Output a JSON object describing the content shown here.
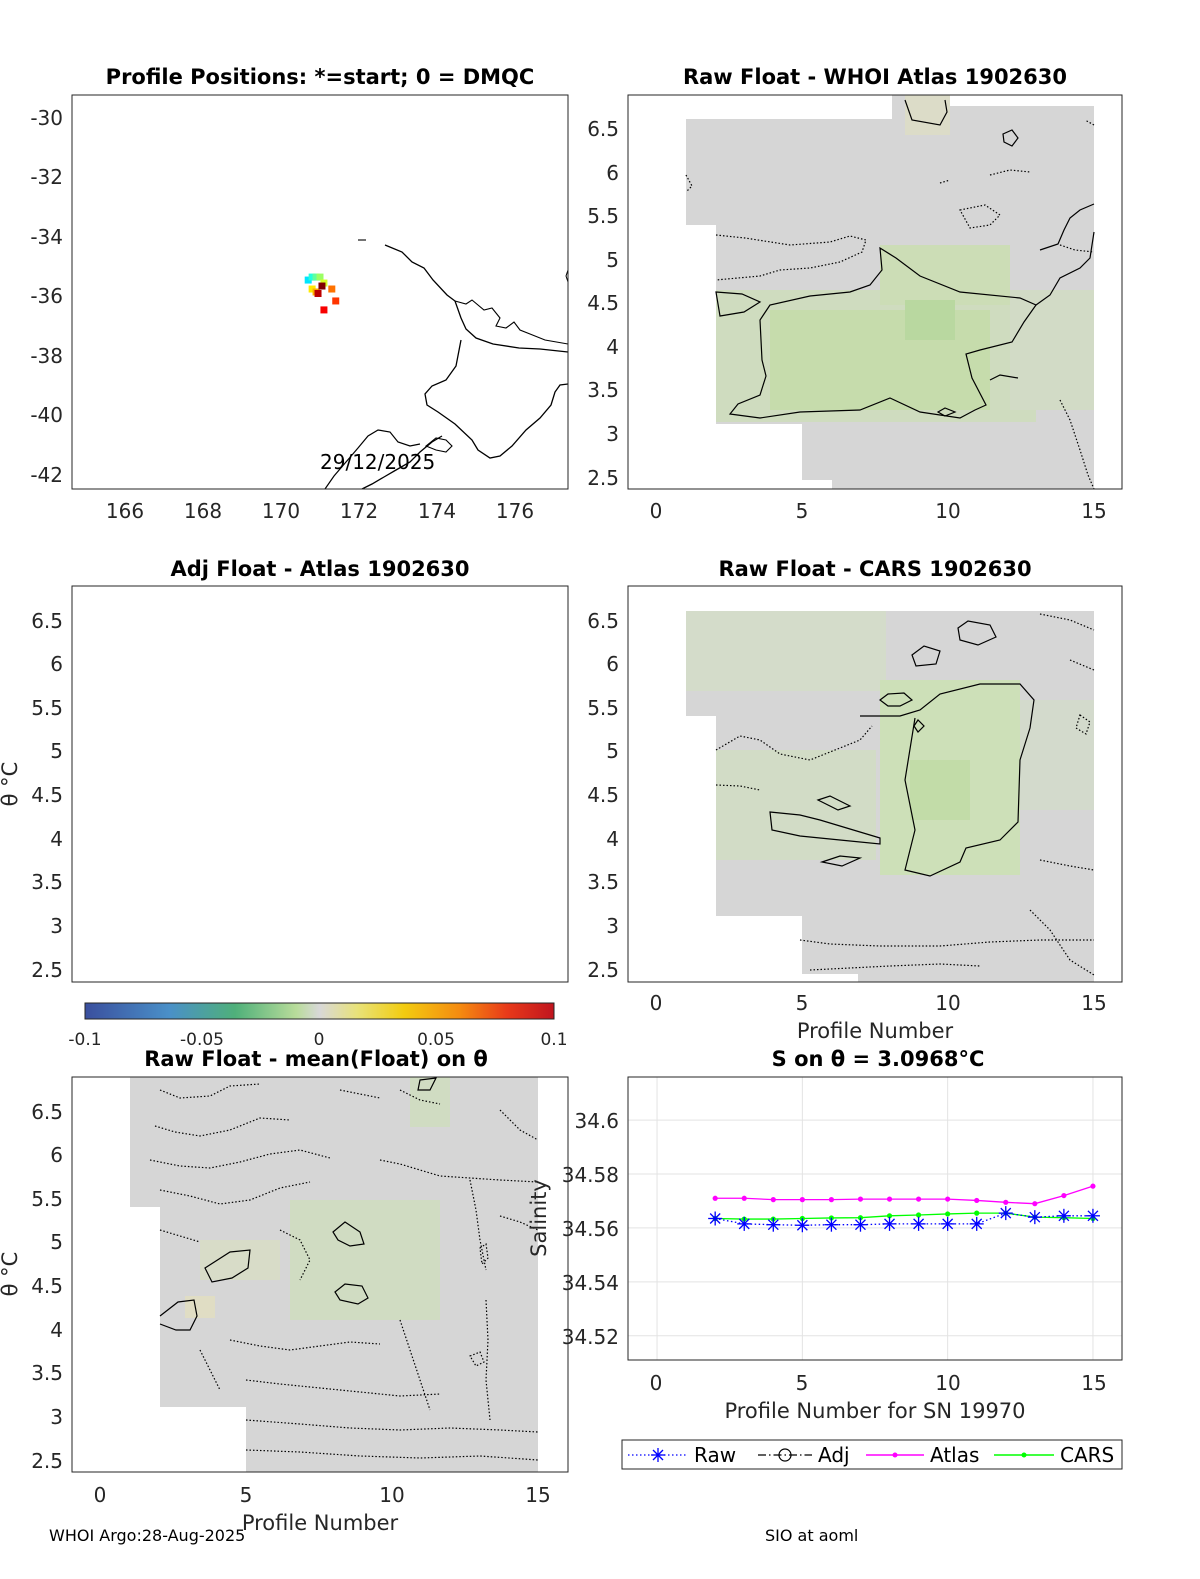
{
  "panels": {
    "map": {
      "title": "Profile Positions: *=start; 0 = DMQC",
      "date_label": "29/12/2025",
      "xticks": [
        "166",
        "168",
        "170",
        "172",
        "174",
        "176"
      ],
      "yticks": [
        "-30",
        "-32",
        "-34",
        "-36",
        "-38",
        "-40",
        "-42"
      ]
    },
    "whoi": {
      "title": "Raw Float - WHOI Atlas  1902630",
      "xticks": [
        "0",
        "5",
        "10",
        "15"
      ],
      "yticks": [
        "6.5",
        "6",
        "5.5",
        "5",
        "4.5",
        "4",
        "3.5",
        "3",
        "2.5"
      ]
    },
    "adj": {
      "title": "Adj Float - Atlas  1902630",
      "ylabel": "θ °C",
      "yticks": [
        "6.5",
        "6",
        "5.5",
        "5",
        "4.5",
        "4",
        "3.5",
        "3",
        "2.5"
      ]
    },
    "cars": {
      "title": "Raw Float - CARS  1902630",
      "xlabel": "Profile Number",
      "xticks": [
        "0",
        "5",
        "10",
        "15"
      ],
      "yticks": [
        "6.5",
        "6",
        "5.5",
        "5",
        "4.5",
        "4",
        "3.5",
        "3",
        "2.5"
      ]
    },
    "colorbar": {
      "ticks": [
        "-0.1",
        "-0.05",
        "0",
        "0.05",
        "0.1"
      ]
    },
    "mean": {
      "title": "Raw Float - mean(Float) on θ",
      "xlabel": "Profile Number",
      "ylabel": "θ °C",
      "xticks": [
        "0",
        "5",
        "10",
        "15"
      ],
      "yticks": [
        "6.5",
        "6",
        "5.5",
        "5",
        "4.5",
        "4",
        "3.5",
        "3",
        "2.5"
      ]
    },
    "salinity": {
      "title": "S on θ = 3.0968°C",
      "xlabel": "Profile Number for SN 19970",
      "ylabel": "Salinity",
      "xticks": [
        "0",
        "5",
        "10",
        "15"
      ],
      "yticks": [
        "34.6",
        "34.58",
        "34.56",
        "34.54",
        "34.52"
      ],
      "legend": [
        "Raw",
        "Adj",
        "Atlas",
        "CARS"
      ]
    }
  },
  "footer": {
    "left": "WHOI Argo:28-Aug-2025",
    "right": "SIO at aoml"
  },
  "colors": {
    "raw": "#0000ff",
    "adj": "#000000",
    "atlas": "#ff00ff",
    "cars": "#00ff00",
    "field_grey": "#d6d6d6",
    "field_green": "#c8e0b0"
  },
  "chart_data": [
    {
      "type": "scatter",
      "title": "Profile Positions: *=start; 0 = DMQC",
      "xlim": [
        164.7,
        177.3
      ],
      "ylim": [
        -42.5,
        -29.3
      ],
      "annotation": "29/12/2025",
      "points": [
        {
          "lon": 170.7,
          "lat": -35.5
        },
        {
          "lon": 170.8,
          "lat": -35.4
        },
        {
          "lon": 170.9,
          "lat": -35.4
        },
        {
          "lon": 171.0,
          "lat": -35.4
        },
        {
          "lon": 171.1,
          "lat": -35.6
        },
        {
          "lon": 170.8,
          "lat": -35.8
        },
        {
          "lon": 170.9,
          "lat": -35.9
        },
        {
          "lon": 171.3,
          "lat": -35.8
        },
        {
          "lon": 171.4,
          "lat": -36.2
        },
        {
          "lon": 171.1,
          "lat": -36.5
        },
        {
          "lon": 170.95,
          "lat": -35.95
        },
        {
          "lon": 171.05,
          "lat": -35.7
        }
      ]
    },
    {
      "type": "heatmap",
      "title": "Raw Float - WHOI Atlas  1902630",
      "xlim": [
        -1,
        16
      ],
      "ylim": [
        2.35,
        6.9
      ]
    },
    {
      "type": "heatmap",
      "title": "Adj Float - Atlas  1902630",
      "ylim": [
        2.35,
        6.9
      ]
    },
    {
      "type": "heatmap",
      "title": "Raw Float - CARS  1902630",
      "xlabel": "Profile Number",
      "xlim": [
        -1,
        16
      ],
      "ylim": [
        2.35,
        6.9
      ]
    },
    {
      "type": "heatmap",
      "title": "Raw Float - mean(Float) on θ",
      "xlabel": "Profile Number",
      "xlim": [
        -1,
        16
      ],
      "ylim": [
        2.35,
        6.9
      ]
    },
    {
      "type": "line",
      "title": "S on θ = 3.0968°C",
      "xlabel": "Profile Number for SN 19970",
      "ylabel": "Salinity",
      "xlim": [
        -1,
        16
      ],
      "ylim": [
        34.511,
        34.616
      ],
      "grid": true,
      "legend_position": "bottom",
      "x": [
        2,
        3,
        4,
        5,
        6,
        7,
        8,
        9,
        10,
        11,
        12,
        13,
        14,
        15
      ],
      "series": [
        {
          "name": "Raw",
          "values": [
            34.5635,
            34.5615,
            34.5612,
            34.561,
            34.5612,
            34.5612,
            34.5615,
            34.5615,
            34.5615,
            34.5615,
            34.5655,
            34.564,
            34.5645,
            34.5645
          ]
        },
        {
          "name": "Atlas",
          "values": [
            34.571,
            34.571,
            34.5705,
            34.5705,
            34.5705,
            34.5707,
            34.5707,
            34.5707,
            34.5707,
            34.5702,
            34.5695,
            34.569,
            34.572,
            34.5755
          ]
        },
        {
          "name": "CARS",
          "values": [
            34.5635,
            34.5633,
            34.5633,
            34.5635,
            34.5637,
            34.5638,
            34.5645,
            34.5648,
            34.5652,
            34.5655,
            34.5655,
            34.564,
            34.5638,
            34.5635
          ]
        }
      ]
    }
  ]
}
